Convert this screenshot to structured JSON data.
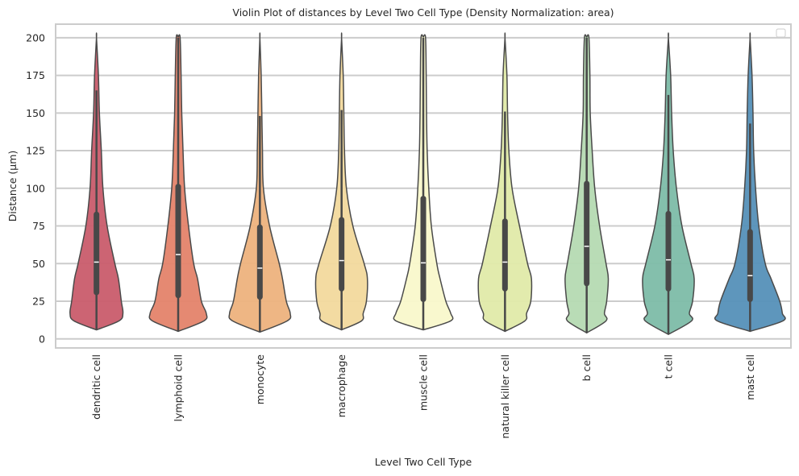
{
  "chart_data": {
    "type": "violin",
    "title": "Violin Plot of distances by Level Two Cell Type (Density Normalization: area)",
    "xlabel": "Level Two Cell Type",
    "ylabel": "Distance (µm)",
    "ylim": [
      -6,
      209
    ],
    "yticks": [
      0,
      25,
      50,
      75,
      100,
      125,
      150,
      175,
      200
    ],
    "ytick_labels": [
      "0",
      "25",
      "50",
      "75",
      "100",
      "125",
      "150",
      "175",
      "200"
    ],
    "grid": "horizontal",
    "legend": "top-right (empty)",
    "density_grid": [
      12,
      17,
      25,
      40,
      50,
      75,
      100,
      125,
      150,
      175,
      200
    ],
    "categories": [
      "dendritic cell",
      "lymphoid cell",
      "monocyte",
      "macrophage",
      "muscle cell",
      "natural killer cell",
      "b cell",
      "t cell",
      "mast cell"
    ],
    "series": [
      {
        "name": "dendritic cell",
        "color": "#c95c6b",
        "min": 6,
        "q1": 29,
        "median": 51,
        "q3": 84.5,
        "whisker_high": 165,
        "max": 200,
        "density": [
          0.7,
          0.82,
          0.77,
          0.68,
          0.57,
          0.33,
          0.2,
          0.15,
          0.09,
          0.06,
          0.0
        ]
      },
      {
        "name": "lymphoid cell",
        "color": "#e4836a",
        "min": 5,
        "q1": 27,
        "median": 56,
        "q3": 103,
        "whisker_high": 200,
        "max": 200,
        "density": [
          0.8,
          0.87,
          0.72,
          0.6,
          0.48,
          0.32,
          0.2,
          0.15,
          0.11,
          0.09,
          0.06
        ]
      },
      {
        "name": "monocyte",
        "color": "#edb27d",
        "min": 4.5,
        "q1": 26,
        "median": 47,
        "q3": 76,
        "whisker_high": 148,
        "max": 200,
        "density": [
          0.85,
          0.94,
          0.82,
          0.7,
          0.6,
          0.3,
          0.11,
          0.08,
          0.06,
          0.04,
          0.0
        ]
      },
      {
        "name": "macrophage",
        "color": "#f2d99d",
        "min": 6,
        "q1": 31.5,
        "median": 52,
        "q3": 81,
        "whisker_high": 152,
        "max": 200,
        "density": [
          0.62,
          0.67,
          0.77,
          0.8,
          0.7,
          0.35,
          0.15,
          0.09,
          0.07,
          0.05,
          0.0
        ]
      },
      {
        "name": "muscle cell",
        "color": "#f9f8cb",
        "min": 6,
        "q1": 24.5,
        "median": 50.5,
        "q3": 95,
        "whisker_high": 200,
        "max": 200,
        "density": [
          0.85,
          0.85,
          0.7,
          0.52,
          0.42,
          0.25,
          0.17,
          0.12,
          0.1,
          0.09,
          0.07
        ]
      },
      {
        "name": "natural killer cell",
        "color": "#e0eaa9",
        "min": 5,
        "q1": 31.5,
        "median": 51,
        "q3": 80,
        "whisker_high": 151,
        "max": 200,
        "density": [
          0.62,
          0.67,
          0.8,
          0.82,
          0.7,
          0.45,
          0.22,
          0.12,
          0.08,
          0.06,
          0.0
        ]
      },
      {
        "name": "b cell",
        "color": "#b5dab2",
        "min": 4,
        "q1": 35,
        "median": 61.5,
        "q3": 105,
        "whisker_high": 200,
        "max": 200,
        "density": [
          0.6,
          0.55,
          0.62,
          0.67,
          0.6,
          0.4,
          0.25,
          0.17,
          0.11,
          0.1,
          0.07
        ]
      },
      {
        "name": "t cell",
        "color": "#7dbca8",
        "min": 3,
        "q1": 31.5,
        "median": 52.5,
        "q3": 85,
        "whisker_high": 162,
        "max": 200,
        "density": [
          0.72,
          0.65,
          0.75,
          0.8,
          0.7,
          0.42,
          0.25,
          0.15,
          0.1,
          0.07,
          0.0
        ]
      },
      {
        "name": "mast cell",
        "color": "#5590b8",
        "min": 5,
        "q1": 24.5,
        "median": 42,
        "q3": 73,
        "whisker_high": 143,
        "max": 200,
        "density": [
          1.02,
          1.0,
          0.92,
          0.65,
          0.47,
          0.27,
          0.17,
          0.11,
          0.09,
          0.06,
          0.0
        ]
      }
    ]
  }
}
